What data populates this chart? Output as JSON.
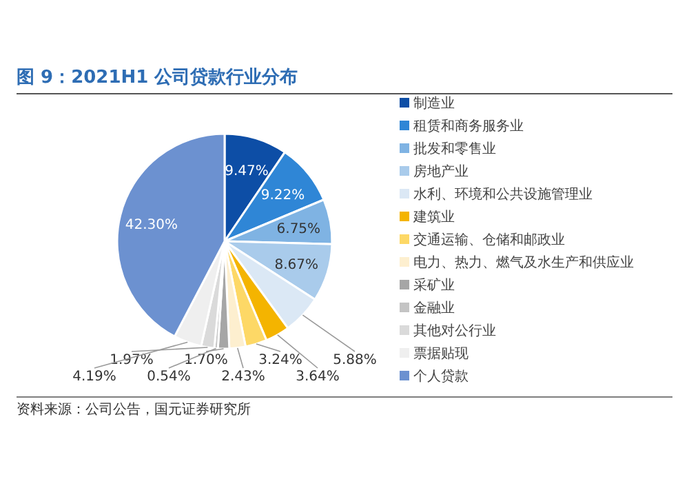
{
  "chart_data": {
    "type": "pie",
    "title": "图 9：2021H1 公司贷款行业分布",
    "categories": [
      "制造业",
      "租赁和商务服务业",
      "批发和零售业",
      "房地产业",
      "水利、环境和公共设施管理业",
      "建筑业",
      "交通运输、仓储和邮政业",
      "电力、热力、燃气及水生产和供应业",
      "采矿业",
      "金融业",
      "其他对公行业",
      "票据贴现",
      "个人贷款"
    ],
    "values": [
      9.47,
      9.22,
      6.75,
      8.67,
      5.88,
      3.64,
      3.24,
      2.43,
      1.7,
      0.54,
      1.97,
      4.19,
      42.3
    ],
    "colors": [
      "#0d4ea6",
      "#2f86d6",
      "#7fb3e3",
      "#a9cbeb",
      "#dbe8f5",
      "#f4b400",
      "#fdd866",
      "#fdefcf",
      "#a6a6a6",
      "#c4c4c4",
      "#dadada",
      "#efefef",
      "#6c91d0"
    ],
    "value_labels": [
      "9.47%",
      "9.22%",
      "6.75%",
      "8.67%",
      "5.88%",
      "3.64%",
      "3.24%",
      "2.43%",
      "1.70%",
      "0.54%",
      "1.97%",
      "4.19%",
      "42.30%"
    ],
    "legend": "right",
    "annotations": [
      "资料来源：公司公告，国元证券研究所"
    ]
  }
}
